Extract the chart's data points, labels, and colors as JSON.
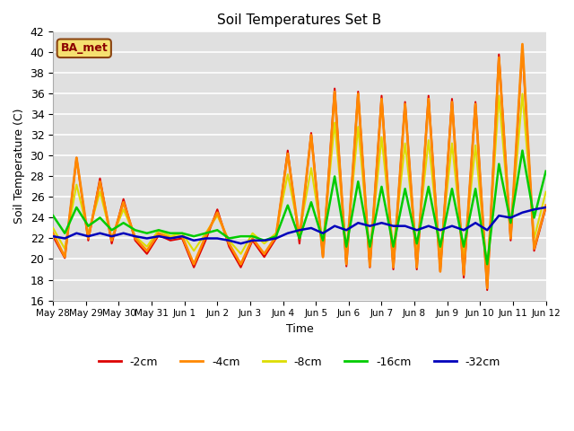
{
  "title": "Soil Temperatures Set B",
  "xlabel": "Time",
  "ylabel": "Soil Temperature (C)",
  "ylim": [
    16,
    42
  ],
  "yticks": [
    16,
    18,
    20,
    22,
    24,
    26,
    28,
    30,
    32,
    34,
    36,
    38,
    40,
    42
  ],
  "annotation": "BA_met",
  "bg_color": "#e0e0e0",
  "line_colors": {
    "-2cm": "#dd0000",
    "-4cm": "#ff8800",
    "-8cm": "#dddd00",
    "-16cm": "#00cc00",
    "-32cm": "#0000bb"
  },
  "x_tick_labels": [
    "May 28",
    "May 29",
    "May 30",
    "May 31",
    "Jun 1",
    "Jun 2",
    "Jun 3",
    "Jun 4",
    "Jun 5",
    "Jun 6",
    "Jun 7",
    "Jun 8",
    "Jun 9",
    "Jun 10",
    "Jun 11",
    "Jun 12"
  ],
  "x_tick_positions": [
    0,
    2,
    4,
    6,
    8,
    10,
    12,
    14,
    16,
    18,
    20,
    22,
    24,
    26,
    28,
    30
  ],
  "data_2cm": [
    22.2,
    20.1,
    29.8,
    21.8,
    27.8,
    21.5,
    25.8,
    21.8,
    20.5,
    22.3,
    21.8,
    22.0,
    19.2,
    21.8,
    24.8,
    21.2,
    19.2,
    21.8,
    20.2,
    22.0,
    30.5,
    21.5,
    32.2,
    20.2,
    36.5,
    19.3,
    36.2,
    19.2,
    35.8,
    19.0,
    35.2,
    19.0,
    35.8,
    18.8,
    35.5,
    18.2,
    35.2,
    17.0,
    39.8,
    21.8,
    40.5,
    20.8,
    25.0
  ],
  "data_4cm": [
    22.5,
    20.2,
    29.8,
    22.0,
    27.5,
    21.8,
    25.5,
    22.0,
    20.8,
    22.5,
    22.0,
    22.2,
    19.5,
    22.2,
    24.5,
    21.5,
    19.5,
    22.0,
    20.5,
    22.2,
    30.2,
    22.0,
    32.0,
    20.2,
    36.2,
    19.5,
    36.0,
    19.3,
    35.5,
    19.2,
    35.0,
    19.2,
    35.5,
    18.8,
    35.2,
    18.5,
    35.0,
    17.2,
    39.5,
    22.0,
    40.8,
    21.0,
    25.2
  ],
  "data_8cm": [
    23.0,
    21.0,
    27.2,
    22.5,
    26.5,
    22.0,
    24.8,
    22.2,
    21.2,
    22.8,
    22.2,
    22.5,
    20.8,
    22.5,
    24.2,
    21.8,
    20.5,
    22.5,
    21.5,
    22.5,
    28.2,
    22.5,
    28.8,
    21.5,
    33.2,
    20.8,
    32.8,
    20.5,
    31.8,
    20.8,
    31.2,
    21.0,
    31.5,
    20.5,
    31.2,
    20.2,
    31.0,
    18.8,
    35.8,
    22.5,
    36.0,
    22.0,
    26.5
  ],
  "data_16cm": [
    24.2,
    22.5,
    25.0,
    23.2,
    24.0,
    22.8,
    23.5,
    22.8,
    22.5,
    22.8,
    22.5,
    22.5,
    22.2,
    22.5,
    22.8,
    22.0,
    22.2,
    22.2,
    21.8,
    22.2,
    25.2,
    22.0,
    25.5,
    21.8,
    28.0,
    21.2,
    27.5,
    21.2,
    27.0,
    21.2,
    26.8,
    21.5,
    27.0,
    21.2,
    26.8,
    21.2,
    26.8,
    19.5,
    29.2,
    23.5,
    30.5,
    24.0,
    28.5
  ],
  "data_32cm": [
    22.2,
    22.0,
    22.5,
    22.2,
    22.5,
    22.2,
    22.5,
    22.2,
    22.0,
    22.2,
    22.0,
    22.2,
    21.8,
    22.0,
    22.0,
    21.8,
    21.5,
    21.8,
    21.8,
    22.0,
    22.5,
    22.8,
    23.0,
    22.5,
    23.2,
    22.8,
    23.5,
    23.2,
    23.5,
    23.2,
    23.2,
    22.8,
    23.2,
    22.8,
    23.2,
    22.8,
    23.5,
    22.8,
    24.2,
    24.0,
    24.5,
    24.8,
    25.0
  ]
}
